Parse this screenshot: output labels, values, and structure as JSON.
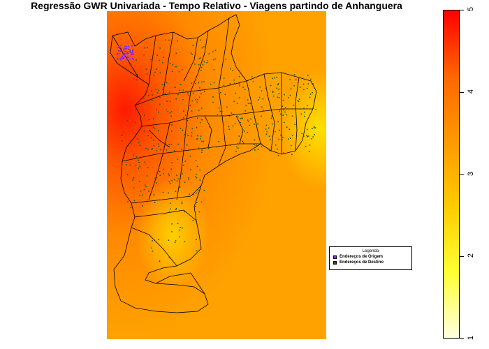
{
  "title": "Regressão GWR Univariada - Tempo Relativo - Viagens partindo de Anhanguera",
  "legend": {
    "title": "Legenda",
    "items": [
      {
        "label": "Endereços de Origem",
        "color": "#8a2be2"
      },
      {
        "label": "Endereços de Destino",
        "color": "#1a5e1a"
      }
    ]
  },
  "colorbar": {
    "min": 1,
    "max": 5,
    "ticks": [
      "1",
      "2",
      "3",
      "4",
      "5"
    ],
    "colors": [
      "#ffffe0",
      "#ffff33",
      "#ffcc00",
      "#ff9900",
      "#ff6600",
      "#ff0000"
    ]
  },
  "map": {
    "origin_color": "#8a2be2",
    "destination_color": "#1a5e1a",
    "border_color": "#000000"
  }
}
